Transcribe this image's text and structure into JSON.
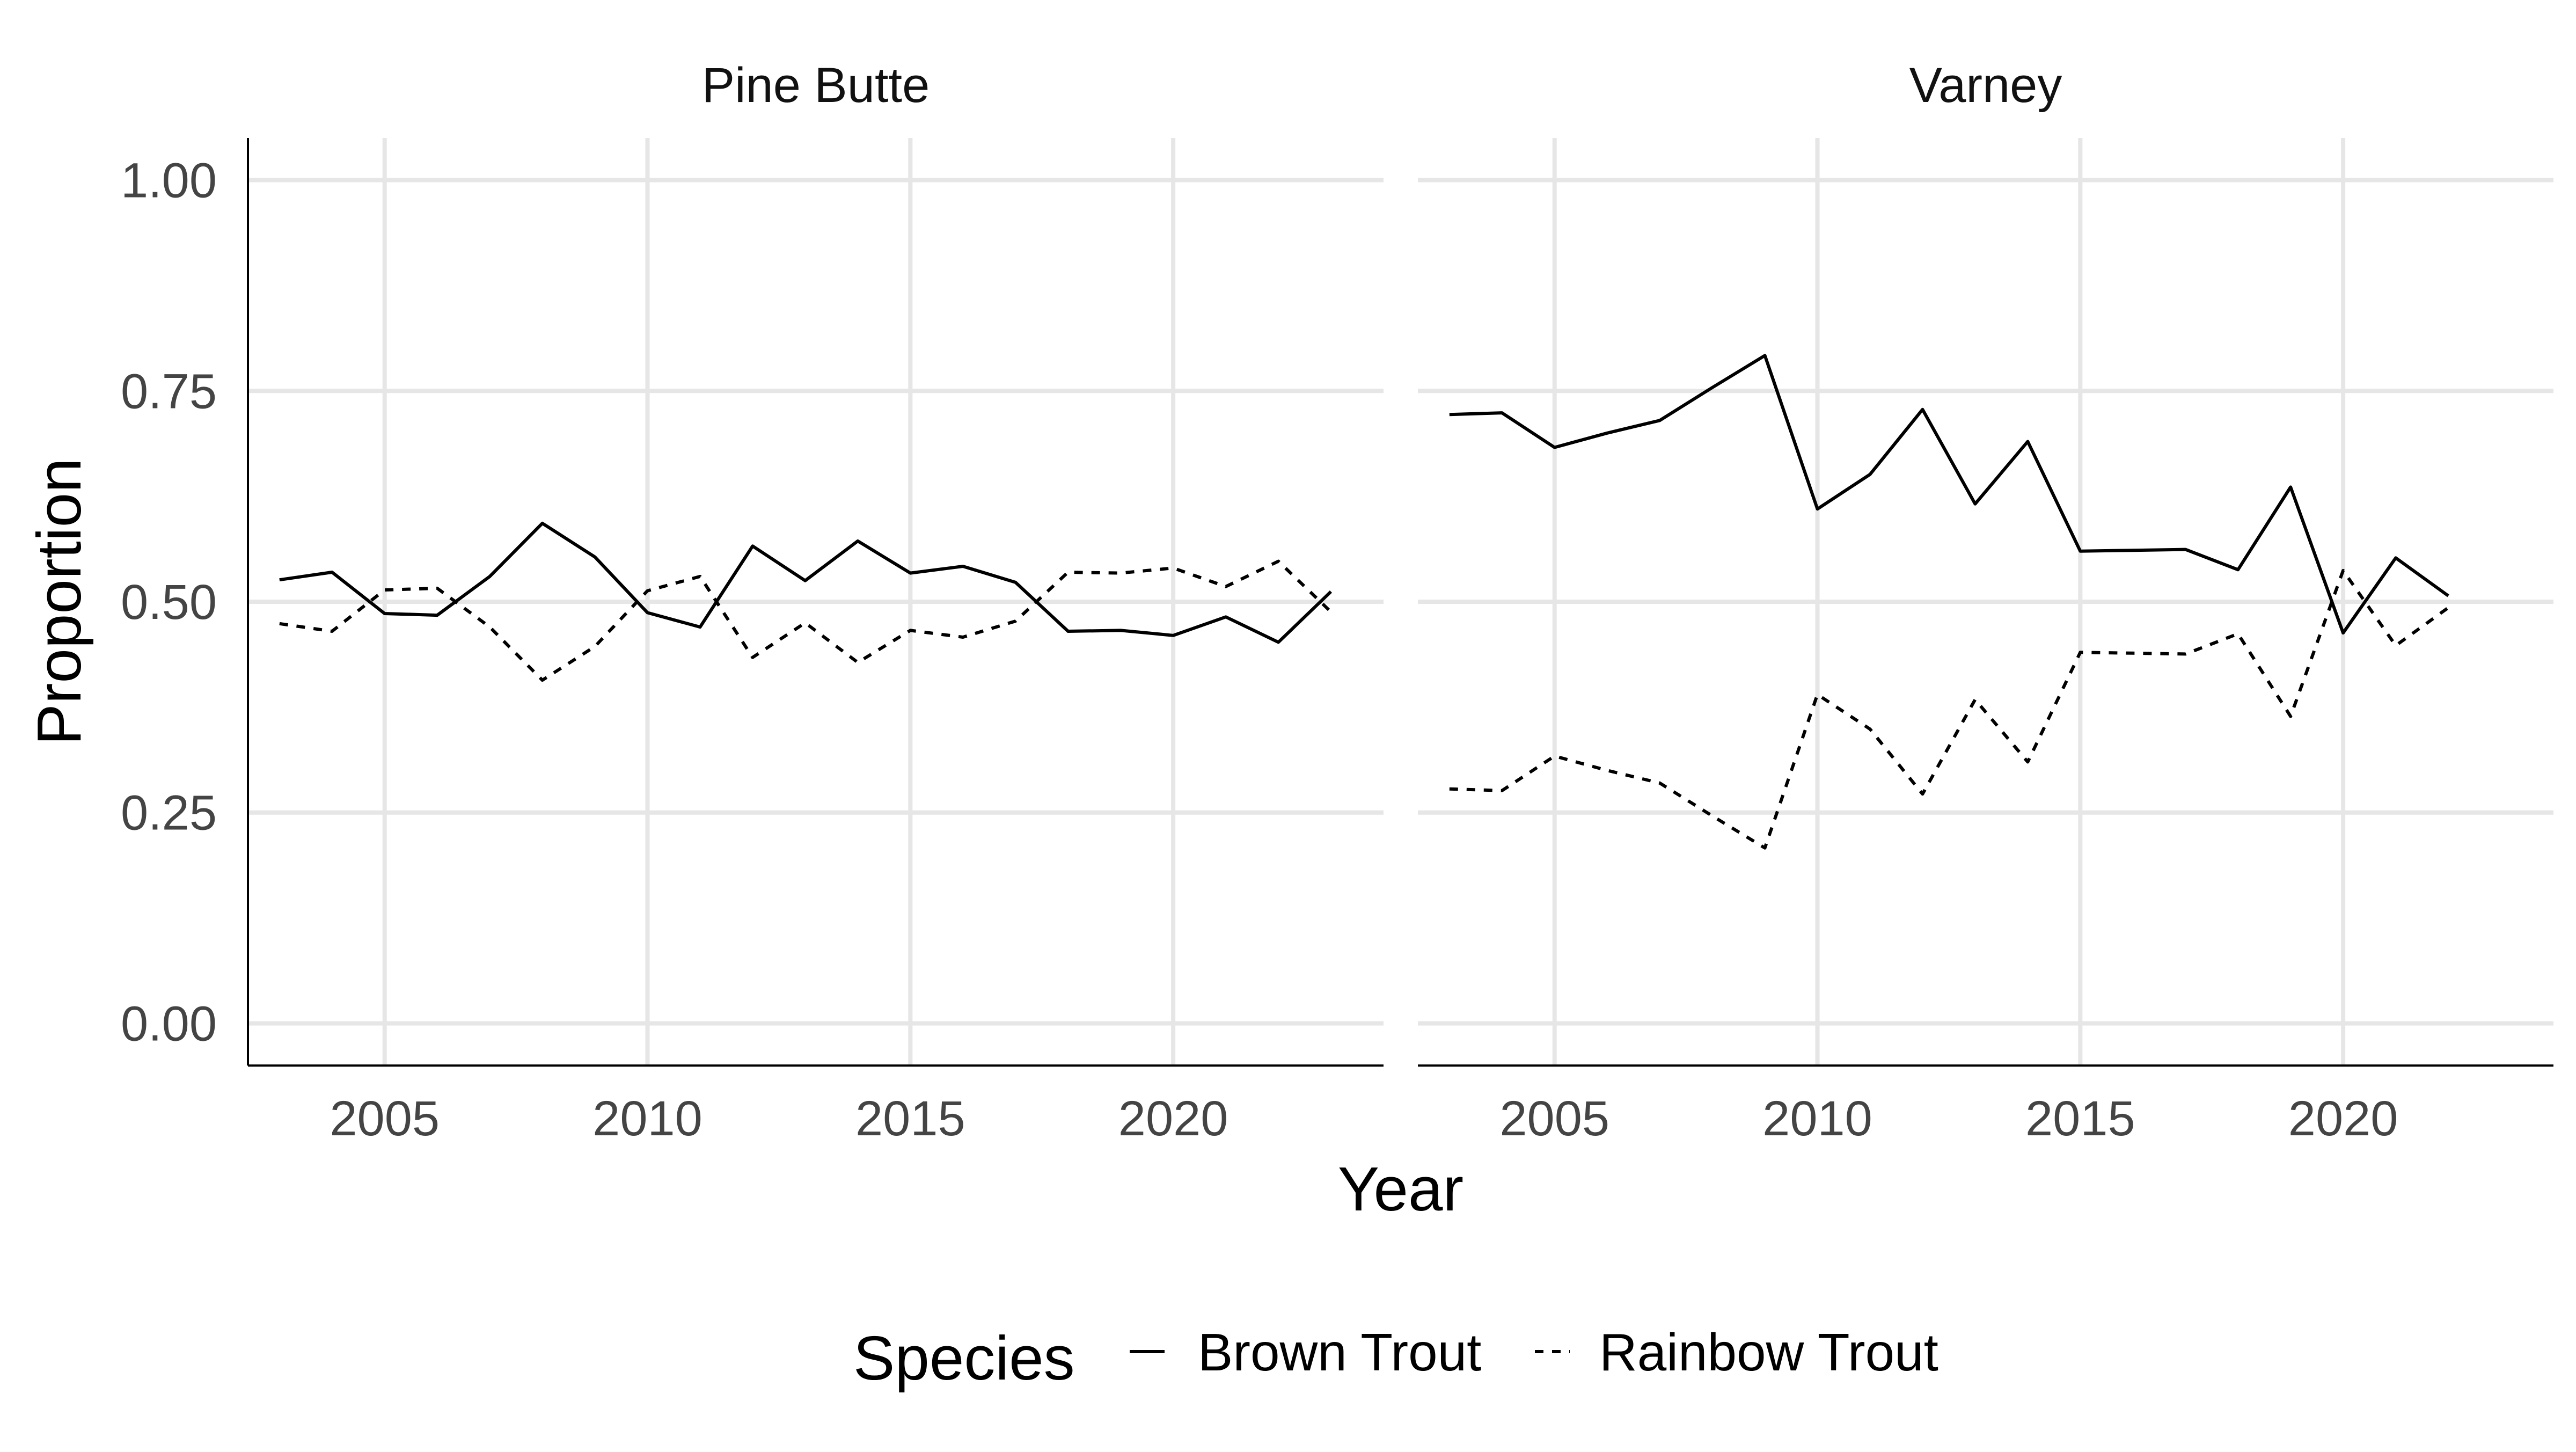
{
  "chart_data": {
    "type": "line",
    "xlabel": "Year",
    "ylabel": "Proportion",
    "xlim": [
      2002.4,
      2024.0
    ],
    "ylim": [
      -0.05,
      1.05
    ],
    "x_ticks": [
      2005,
      2010,
      2015,
      2020
    ],
    "y_ticks": [
      0.0,
      0.25,
      0.5,
      0.75,
      1.0
    ],
    "x_tick_labels": [
      "2005",
      "2010",
      "2015",
      "2020"
    ],
    "y_tick_labels": [
      "0.00",
      "0.25",
      "0.50",
      "0.75",
      "1.00"
    ],
    "grid": true,
    "legend": {
      "title": "Species",
      "position": "bottom",
      "entries": [
        {
          "label": "Brown Trout",
          "linetype": "solid"
        },
        {
          "label": "Rainbow Trout",
          "linetype": "dashed"
        }
      ]
    },
    "panels": [
      {
        "title": "Pine Butte",
        "series": [
          {
            "name": "Brown Trout",
            "linetype": "solid",
            "x": [
              2003,
              2004,
              2005,
              2006,
              2007,
              2008,
              2009,
              2010,
              2011,
              2012,
              2013,
              2014,
              2015,
              2016,
              2017,
              2018,
              2019,
              2020,
              2021,
              2022,
              2023
            ],
            "y": [
              0.526,
              0.535,
              0.486,
              0.484,
              0.53,
              0.593,
              0.553,
              0.487,
              0.47,
              0.566,
              0.525,
              0.572,
              0.534,
              0.542,
              0.523,
              0.465,
              0.466,
              0.46,
              0.482,
              0.452,
              0.512
            ]
          },
          {
            "name": "Rainbow Trout",
            "linetype": "dashed",
            "x": [
              2003,
              2004,
              2005,
              2006,
              2007,
              2008,
              2009,
              2010,
              2011,
              2012,
              2013,
              2014,
              2015,
              2016,
              2017,
              2018,
              2019,
              2020,
              2021,
              2022,
              2023
            ],
            "y": [
              0.474,
              0.465,
              0.514,
              0.516,
              0.47,
              0.407,
              0.447,
              0.513,
              0.53,
              0.434,
              0.475,
              0.428,
              0.466,
              0.458,
              0.477,
              0.535,
              0.534,
              0.54,
              0.518,
              0.548,
              0.488
            ]
          }
        ]
      },
      {
        "title": "Varney",
        "series": [
          {
            "name": "Brown Trout",
            "linetype": "solid",
            "x": [
              2003,
              2004,
              2005,
              2006,
              2007,
              2008,
              2009,
              2010,
              2011,
              2012,
              2013,
              2014,
              2015,
              2016,
              2017,
              2018,
              2019,
              2020,
              2021,
              2022
            ],
            "y": [
              0.722,
              0.724,
              0.683,
              0.7,
              0.715,
              0.754,
              0.792,
              0.61,
              0.651,
              0.728,
              0.616,
              0.69,
              0.56,
              0.561,
              0.562,
              0.538,
              0.636,
              0.463,
              0.552,
              0.507
            ]
          },
          {
            "name": "Rainbow Trout",
            "linetype": "dashed",
            "x": [
              2003,
              2004,
              2005,
              2006,
              2007,
              2008,
              2009,
              2010,
              2011,
              2012,
              2013,
              2014,
              2015,
              2016,
              2017,
              2018,
              2019,
              2020,
              2021,
              2022
            ],
            "y": [
              0.278,
              0.276,
              0.317,
              0.3,
              0.285,
              0.246,
              0.208,
              0.39,
              0.349,
              0.272,
              0.384,
              0.31,
              0.44,
              0.439,
              0.438,
              0.462,
              0.364,
              0.537,
              0.448,
              0.493
            ]
          }
        ]
      }
    ]
  }
}
